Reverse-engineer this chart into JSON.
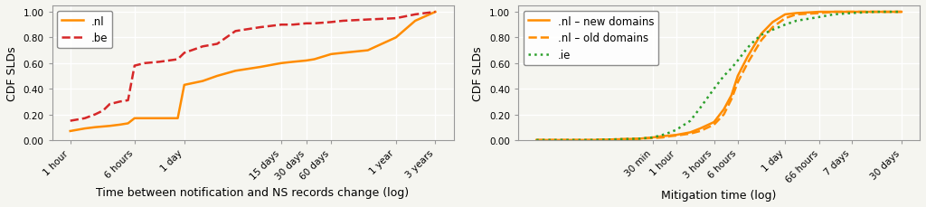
{
  "left": {
    "xlabel": "Time between notification and NS records change (log)",
    "ylabel": "CDF SLDs",
    "xtick_labels": [
      "1 hour",
      "6 hours",
      "1 day",
      "15 days",
      "30 days",
      "60 days",
      "1 year",
      "3 years"
    ],
    "xtick_pos": [
      1,
      6,
      24,
      360,
      720,
      1440,
      8760,
      26280
    ],
    "ylim": [
      0,
      1.05
    ],
    "series": [
      {
        "label": ".nl",
        "color": "#ff8c00",
        "linestyle": "solid",
        "linewidth": 1.8,
        "x": [
          1,
          1.5,
          2,
          3,
          4,
          5,
          6,
          8,
          10,
          12,
          16,
          20,
          24,
          40,
          60,
          100,
          200,
          360,
          500,
          720,
          900,
          1440,
          2000,
          4000,
          8760,
          15000,
          26280
        ],
        "y": [
          0.07,
          0.09,
          0.1,
          0.11,
          0.12,
          0.13,
          0.17,
          0.17,
          0.17,
          0.17,
          0.17,
          0.17,
          0.43,
          0.46,
          0.5,
          0.54,
          0.57,
          0.6,
          0.61,
          0.62,
          0.63,
          0.67,
          0.68,
          0.7,
          0.8,
          0.93,
          1.0
        ]
      },
      {
        "label": ".be",
        "color": "#d62728",
        "linestyle": "dashed",
        "linewidth": 1.8,
        "x": [
          1,
          1.5,
          2,
          2.5,
          3,
          4,
          5,
          6,
          8,
          12,
          20,
          24,
          40,
          60,
          100,
          200,
          360,
          500,
          720,
          900,
          1440,
          2000,
          4000,
          8760,
          15000,
          26280
        ],
        "y": [
          0.15,
          0.17,
          0.2,
          0.23,
          0.28,
          0.3,
          0.31,
          0.58,
          0.6,
          0.61,
          0.63,
          0.68,
          0.73,
          0.75,
          0.85,
          0.88,
          0.9,
          0.9,
          0.91,
          0.91,
          0.92,
          0.93,
          0.94,
          0.95,
          0.98,
          1.0
        ]
      }
    ]
  },
  "right": {
    "xlabel": "Mitigation time (log)",
    "ylabel": "CDF SLDs",
    "xtick_labels": [
      "30 min",
      "1 hour",
      "3 hours",
      "6 hours",
      "1 day",
      "66 hours",
      "7 days",
      "30 days"
    ],
    "xtick_pos": [
      30,
      60,
      180,
      360,
      1440,
      3960,
      10080,
      43200
    ],
    "ylim": [
      0,
      1.05
    ],
    "series": [
      {
        "label": ".nl – new domains",
        "color": "#ff8c00",
        "linestyle": "solid",
        "linewidth": 1.8,
        "x": [
          1,
          5,
          10,
          20,
          30,
          40,
          50,
          60,
          90,
          120,
          180,
          240,
          300,
          360,
          480,
          600,
          720,
          1000,
          1440,
          2000,
          3960,
          6000,
          10080,
          20000,
          43200
        ],
        "y": [
          0.0,
          0.0,
          0.005,
          0.01,
          0.02,
          0.03,
          0.035,
          0.04,
          0.06,
          0.09,
          0.14,
          0.24,
          0.35,
          0.5,
          0.65,
          0.75,
          0.83,
          0.92,
          0.98,
          0.99,
          1.0,
          1.0,
          1.0,
          1.0,
          1.0
        ]
      },
      {
        "label": ".nl – old domains",
        "color": "#ff8c00",
        "linestyle": "dashed",
        "linewidth": 1.8,
        "x": [
          1,
          5,
          10,
          20,
          30,
          40,
          50,
          60,
          90,
          120,
          180,
          240,
          300,
          360,
          480,
          600,
          720,
          1000,
          1440,
          2000,
          3960,
          6000,
          10080,
          20000,
          43200
        ],
        "y": [
          0.0,
          0.0,
          0.005,
          0.01,
          0.015,
          0.02,
          0.03,
          0.035,
          0.05,
          0.07,
          0.12,
          0.2,
          0.32,
          0.45,
          0.6,
          0.7,
          0.78,
          0.88,
          0.95,
          0.98,
          0.99,
          1.0,
          1.0,
          1.0,
          1.0
        ]
      },
      {
        "label": ".ie",
        "color": "#2ca02c",
        "linestyle": "dotted",
        "linewidth": 1.8,
        "x": [
          1,
          5,
          10,
          20,
          30,
          40,
          50,
          60,
          90,
          120,
          180,
          240,
          300,
          360,
          480,
          600,
          720,
          1000,
          1440,
          2000,
          3960,
          6000,
          10080,
          20000,
          43200
        ],
        "y": [
          0.0,
          0.0,
          0.005,
          0.01,
          0.02,
          0.04,
          0.06,
          0.08,
          0.15,
          0.25,
          0.4,
          0.5,
          0.56,
          0.62,
          0.72,
          0.78,
          0.82,
          0.86,
          0.9,
          0.93,
          0.96,
          0.98,
          0.99,
          1.0,
          1.0
        ]
      }
    ]
  },
  "bg_color": "#f5f5f0",
  "grid_color": "white",
  "tick_fontsize": 7.5,
  "label_fontsize": 9,
  "legend_fontsize": 8.5
}
